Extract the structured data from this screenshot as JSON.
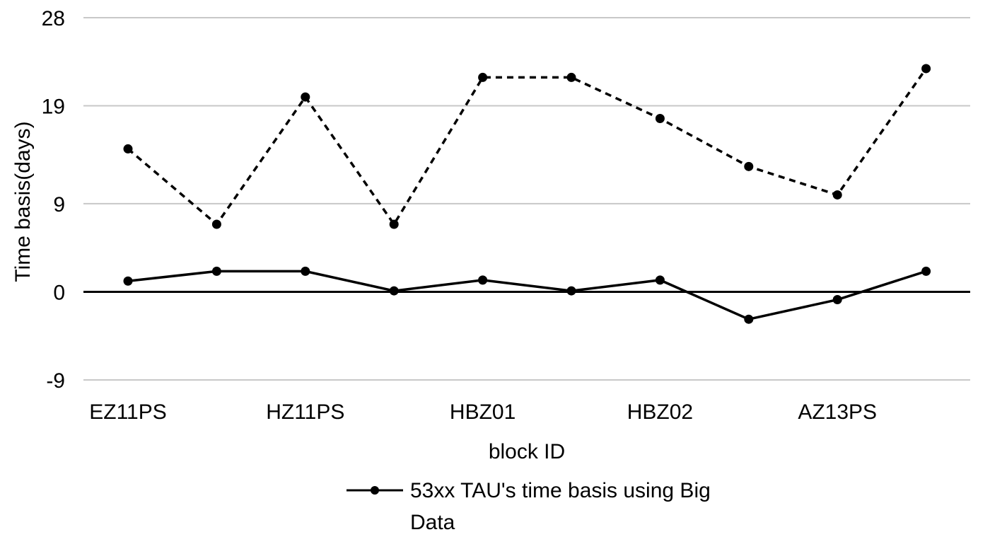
{
  "chart_data": {
    "type": "line",
    "title": "",
    "xlabel": "block ID",
    "ylabel": "Time basis(days)",
    "ylim": [
      -9,
      28
    ],
    "yticks": [
      -9,
      0,
      9,
      19,
      28
    ],
    "grid": true,
    "legend_position": "bottom",
    "categories": [
      "EZ11PS",
      "",
      "HZ11PS",
      "",
      "HBZ01",
      "",
      "HBZ02",
      "",
      "AZ13PS",
      ""
    ],
    "series": [
      {
        "name": "53xx TAU's time basis using Big Data",
        "style": "solid",
        "color": "#000000",
        "values": [
          1.1,
          2.1,
          2.1,
          0.1,
          1.2,
          0.1,
          1.2,
          -2.8,
          -0.8,
          2.1
        ]
      },
      {
        "name": "",
        "style": "dashed",
        "color": "#000000",
        "values": [
          14.6,
          6.9,
          19.9,
          6.9,
          21.9,
          21.9,
          17.7,
          12.8,
          9.9,
          22.8
        ]
      }
    ]
  }
}
